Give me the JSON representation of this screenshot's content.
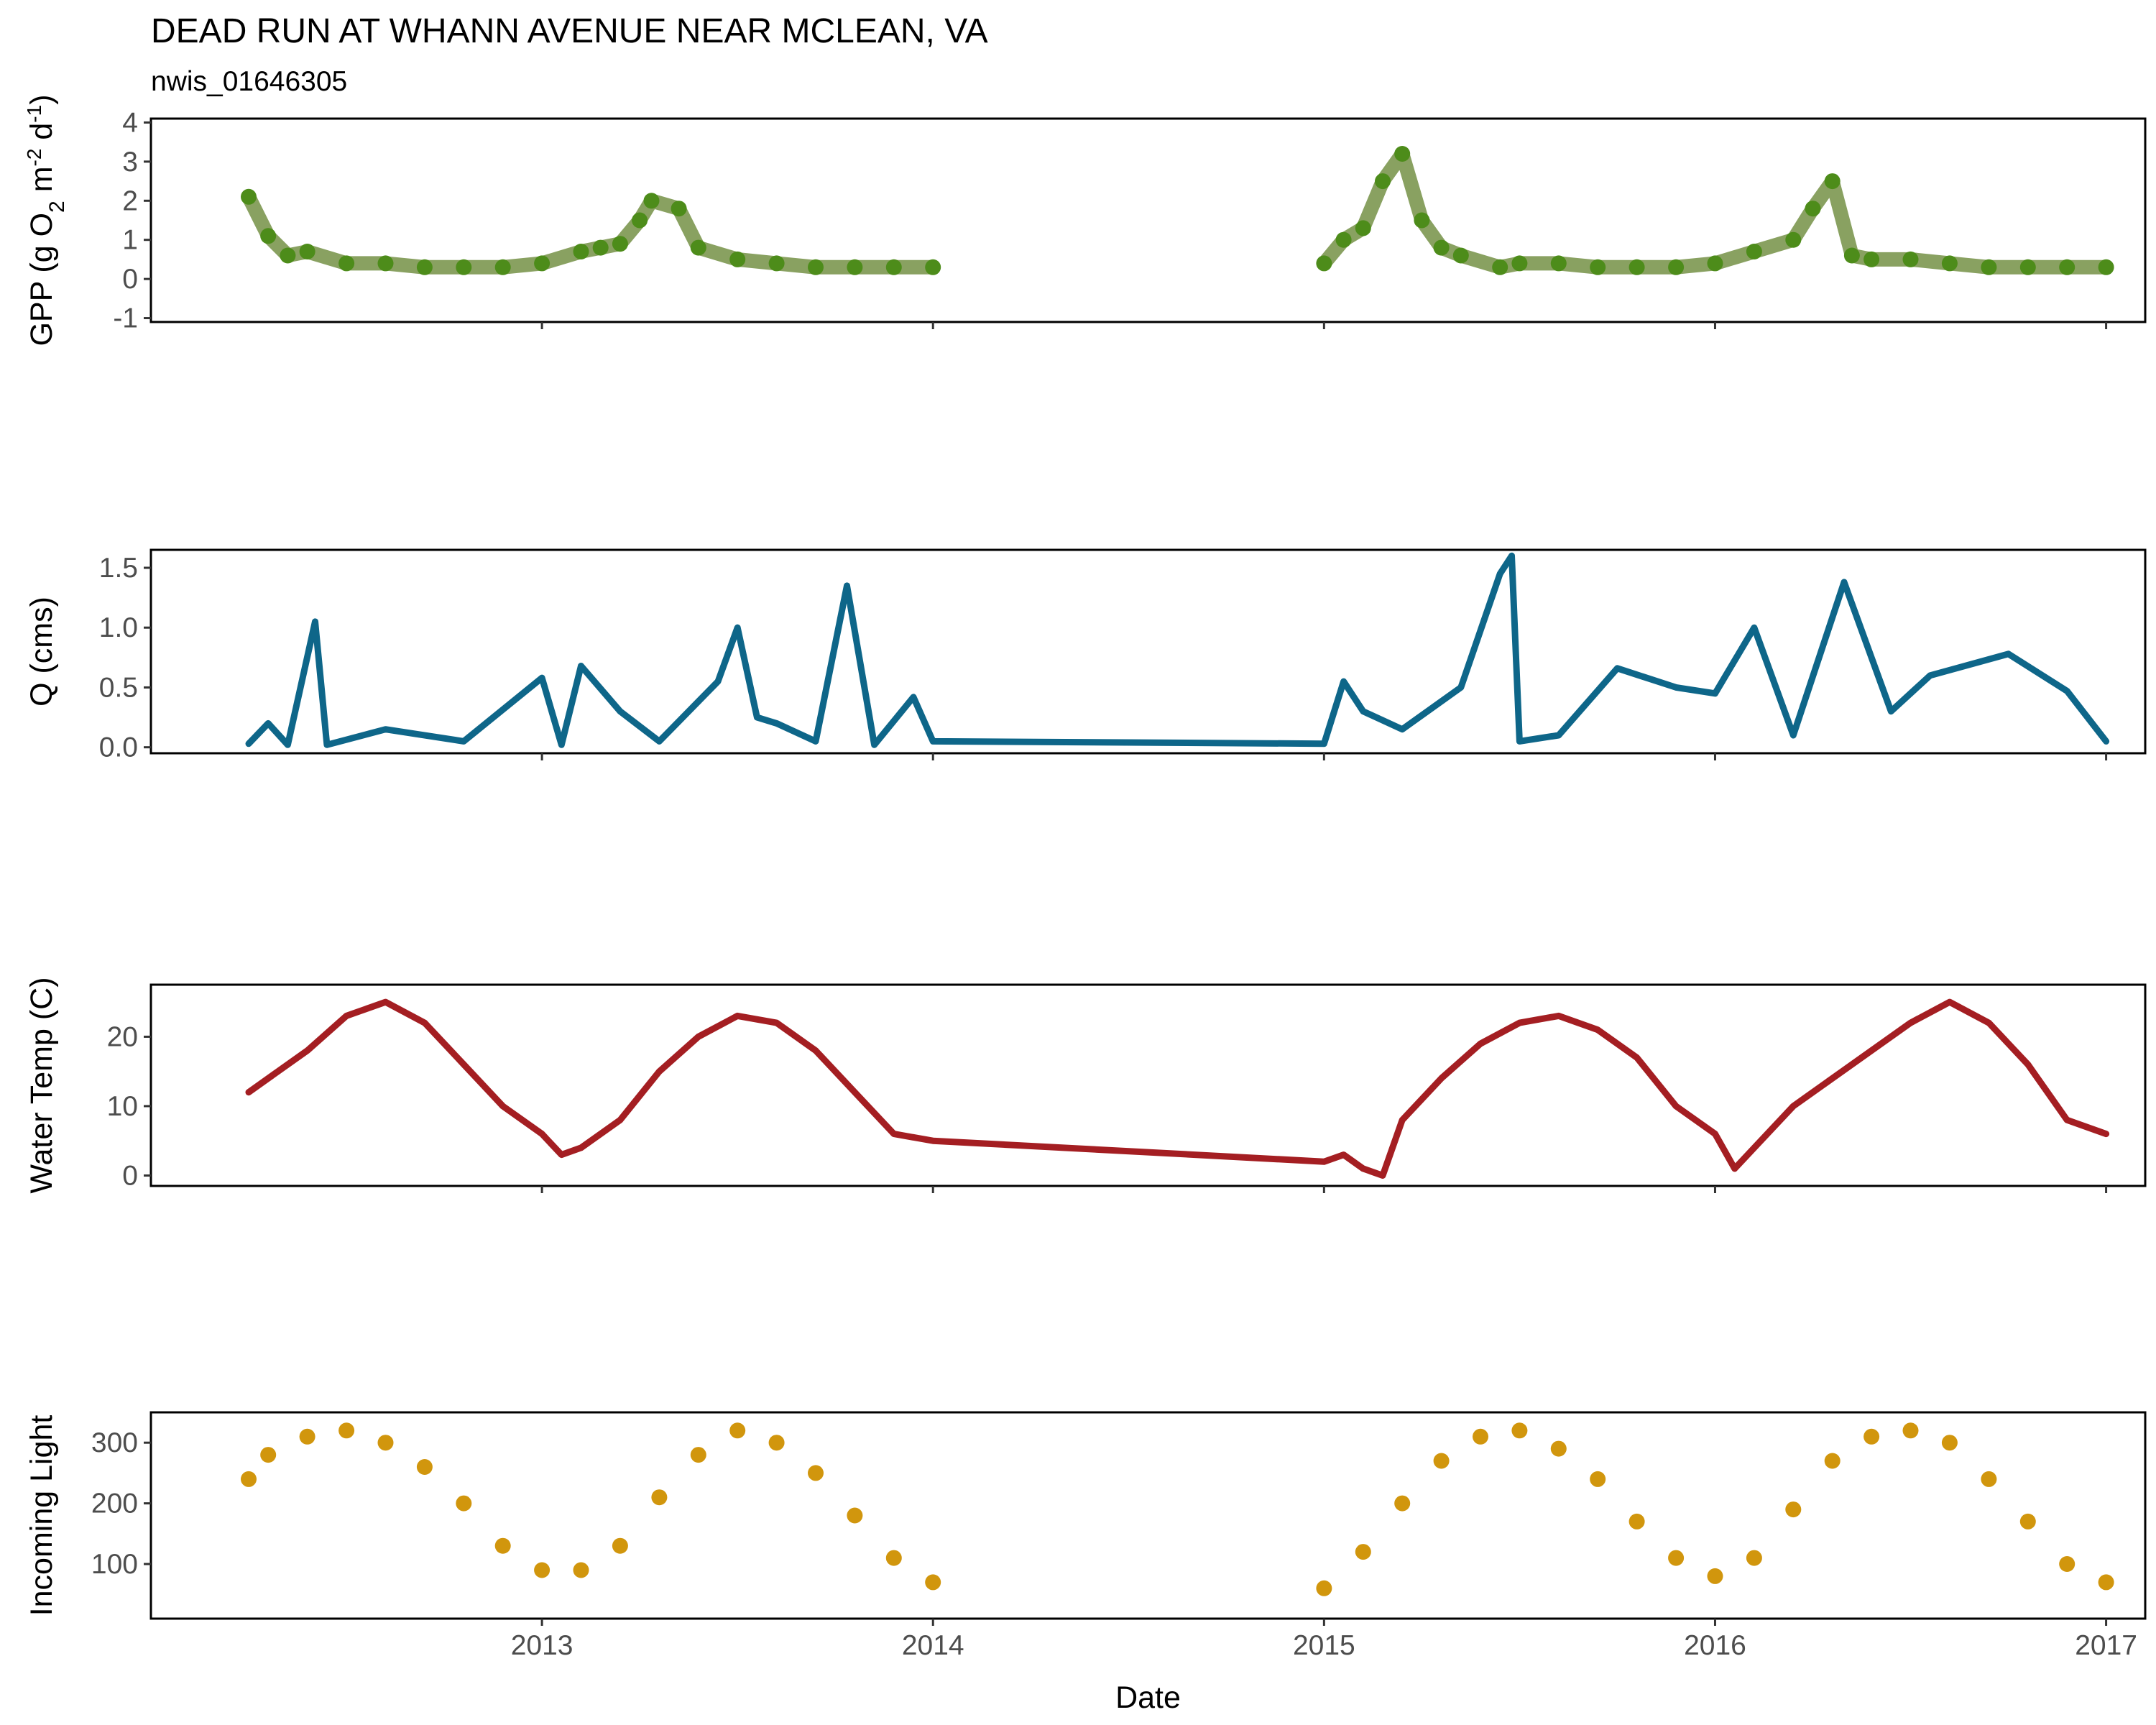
{
  "title": "DEAD RUN AT WHANN AVENUE NEAR MCLEAN, VA",
  "subtitle": "nwis_01646305",
  "chart_data": [
    {
      "id": "gpp",
      "type": "scatter",
      "ylabel_html": "GPP (g O<tspan baseline-shift=\"sub\" font-size=\"30\">2</tspan> m<tspan baseline-shift=\"super\" font-size=\"28\">-2</tspan> d<tspan baseline-shift=\"super\" font-size=\"28\">-1</tspan>)",
      "ylabel": "GPP (g O2 m-2 d-1)",
      "ylim": [
        -1.1,
        4.1
      ],
      "yticks": [
        -1,
        0,
        1,
        2,
        3,
        4
      ],
      "color": "#4d8c1a",
      "band_color": "#6b8a3a",
      "x": [
        2012.25,
        2012.3,
        2012.35,
        2012.4,
        2012.5,
        2012.6,
        2012.7,
        2012.8,
        2012.9,
        2013.0,
        2013.1,
        2013.15,
        2013.2,
        2013.25,
        2013.28,
        2013.35,
        2013.4,
        2013.5,
        2013.6,
        2013.7,
        2013.8,
        2013.9,
        2014.0,
        2015.0,
        2015.05,
        2015.1,
        2015.15,
        2015.2,
        2015.25,
        2015.3,
        2015.35,
        2015.45,
        2015.5,
        2015.6,
        2015.7,
        2015.8,
        2015.9,
        2016.0,
        2016.1,
        2016.2,
        2016.25,
        2016.3,
        2016.35,
        2016.4,
        2016.5,
        2016.6,
        2016.7,
        2016.8,
        2016.9,
        2017.0
      ],
      "values": [
        2.1,
        1.1,
        0.6,
        0.7,
        0.4,
        0.4,
        0.3,
        0.3,
        0.3,
        0.4,
        0.7,
        0.8,
        0.9,
        1.5,
        2.0,
        1.8,
        0.8,
        0.5,
        0.4,
        0.3,
        0.3,
        0.3,
        0.3,
        0.4,
        1.0,
        1.3,
        2.5,
        3.2,
        1.5,
        0.8,
        0.6,
        0.3,
        0.4,
        0.4,
        0.3,
        0.3,
        0.3,
        0.4,
        0.7,
        1.0,
        1.8,
        2.5,
        0.6,
        0.5,
        0.5,
        0.4,
        0.3,
        0.3,
        0.3,
        0.3
      ]
    },
    {
      "id": "q",
      "type": "line",
      "ylabel": "Q (cms)",
      "ylim": [
        -0.05,
        1.65
      ],
      "yticks": [
        0.0,
        0.5,
        1.0,
        1.5
      ],
      "ytick_labels": [
        "0.0",
        "0.5",
        "1.0",
        "1.5"
      ],
      "color": "#0e6689",
      "x": [
        2012.25,
        2012.3,
        2012.35,
        2012.42,
        2012.45,
        2012.6,
        2012.8,
        2013.0,
        2013.05,
        2013.1,
        2013.2,
        2013.3,
        2013.45,
        2013.5,
        2013.55,
        2013.6,
        2013.7,
        2013.78,
        2013.85,
        2013.95,
        2014.0,
        2015.0,
        2015.05,
        2015.1,
        2015.2,
        2015.35,
        2015.45,
        2015.48,
        2015.5,
        2015.6,
        2015.75,
        2015.9,
        2016.0,
        2016.1,
        2016.2,
        2016.33,
        2016.45,
        2016.55,
        2016.75,
        2016.9,
        2017.0
      ],
      "values": [
        0.03,
        0.2,
        0.02,
        1.05,
        0.02,
        0.15,
        0.05,
        0.58,
        0.02,
        0.68,
        0.3,
        0.05,
        0.55,
        1.0,
        0.25,
        0.2,
        0.05,
        1.35,
        0.02,
        0.42,
        0.05,
        0.03,
        0.55,
        0.3,
        0.15,
        0.5,
        1.45,
        1.6,
        0.05,
        0.1,
        0.66,
        0.5,
        0.45,
        1.0,
        0.1,
        1.38,
        0.3,
        0.6,
        0.78,
        0.47,
        0.05
      ]
    },
    {
      "id": "temp",
      "type": "line",
      "ylabel": "Water Temp (C)",
      "ylim": [
        -1.5,
        27.5
      ],
      "yticks": [
        0,
        10,
        20
      ],
      "color": "#a41e22",
      "x": [
        2012.25,
        2012.3,
        2012.4,
        2012.5,
        2012.6,
        2012.7,
        2012.8,
        2012.9,
        2013.0,
        2013.05,
        2013.1,
        2013.2,
        2013.3,
        2013.4,
        2013.5,
        2013.6,
        2013.7,
        2013.8,
        2013.9,
        2014.0,
        2015.0,
        2015.05,
        2015.1,
        2015.15,
        2015.2,
        2015.3,
        2015.4,
        2015.5,
        2015.6,
        2015.7,
        2015.8,
        2015.9,
        2016.0,
        2016.05,
        2016.1,
        2016.2,
        2016.3,
        2016.4,
        2016.5,
        2016.6,
        2016.7,
        2016.8,
        2016.9,
        2017.0
      ],
      "values": [
        12,
        14,
        18,
        23,
        25,
        22,
        16,
        10,
        6,
        3,
        4,
        8,
        15,
        20,
        23,
        22,
        18,
        12,
        6,
        5,
        2,
        3,
        1,
        0,
        8,
        14,
        19,
        22,
        23,
        21,
        17,
        10,
        6,
        1,
        4,
        10,
        14,
        18,
        22,
        25,
        22,
        16,
        8,
        6
      ]
    },
    {
      "id": "light",
      "type": "scatter",
      "ylabel": "Incoming Light",
      "ylim": [
        10,
        350
      ],
      "yticks": [
        100,
        200,
        300
      ],
      "color": "#d1960d",
      "x": [
        2012.25,
        2012.3,
        2012.4,
        2012.5,
        2012.6,
        2012.7,
        2012.8,
        2012.9,
        2013.0,
        2013.1,
        2013.2,
        2013.3,
        2013.4,
        2013.5,
        2013.6,
        2013.7,
        2013.8,
        2013.9,
        2014.0,
        2015.0,
        2015.1,
        2015.2,
        2015.3,
        2015.4,
        2015.5,
        2015.6,
        2015.7,
        2015.8,
        2015.9,
        2016.0,
        2016.1,
        2016.2,
        2016.3,
        2016.4,
        2016.5,
        2016.6,
        2016.7,
        2016.8,
        2016.9,
        2017.0
      ],
      "values": [
        240,
        280,
        310,
        320,
        300,
        260,
        200,
        130,
        90,
        90,
        130,
        210,
        280,
        320,
        300,
        250,
        180,
        110,
        70,
        60,
        120,
        200,
        270,
        310,
        320,
        290,
        240,
        170,
        110,
        80,
        110,
        190,
        270,
        310,
        320,
        300,
        240,
        170,
        100,
        70
      ]
    }
  ],
  "xaxis": {
    "label": "Date",
    "xlim": [
      2012.0,
      2017.1
    ],
    "ticks": [
      2013,
      2014,
      2015,
      2016,
      2017
    ],
    "tick_labels": [
      "2013",
      "2014",
      "2015",
      "2016",
      "2017"
    ]
  }
}
